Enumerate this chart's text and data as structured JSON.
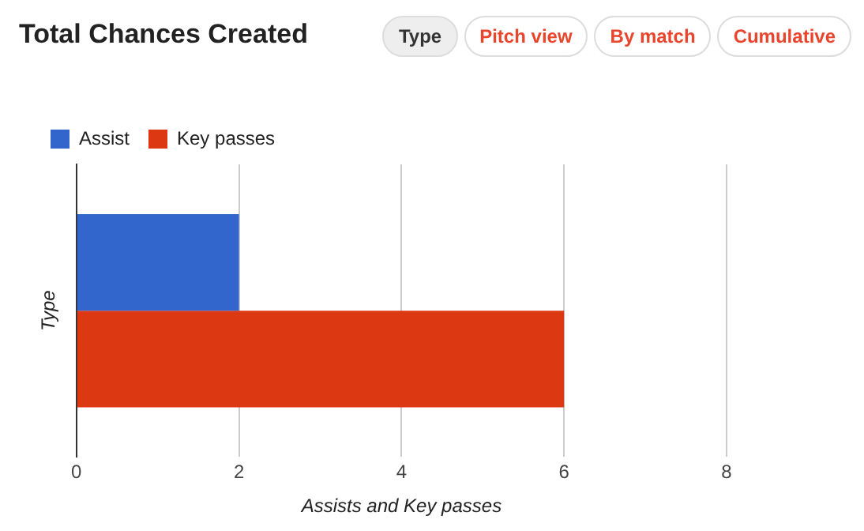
{
  "chart_data": {
    "type": "bar",
    "orientation": "horizontal",
    "title": "Total Chances Created",
    "xlabel": "Assists and Key passes",
    "ylabel": "Type",
    "annotations": [
      "Type",
      "Pitch view",
      "By match",
      "Cumulative"
    ],
    "categories": [
      null
    ],
    "series": [
      {
        "name": "Assist",
        "color": "#3366cc",
        "values": [
          2
        ]
      },
      {
        "name": "Key passes",
        "color": "#dc3912",
        "values": [
          6
        ]
      }
    ],
    "xlim": [
      0,
      8
    ],
    "xticks": [
      0,
      2,
      4,
      6,
      8
    ],
    "grid": "x",
    "legend": "top left"
  }
}
